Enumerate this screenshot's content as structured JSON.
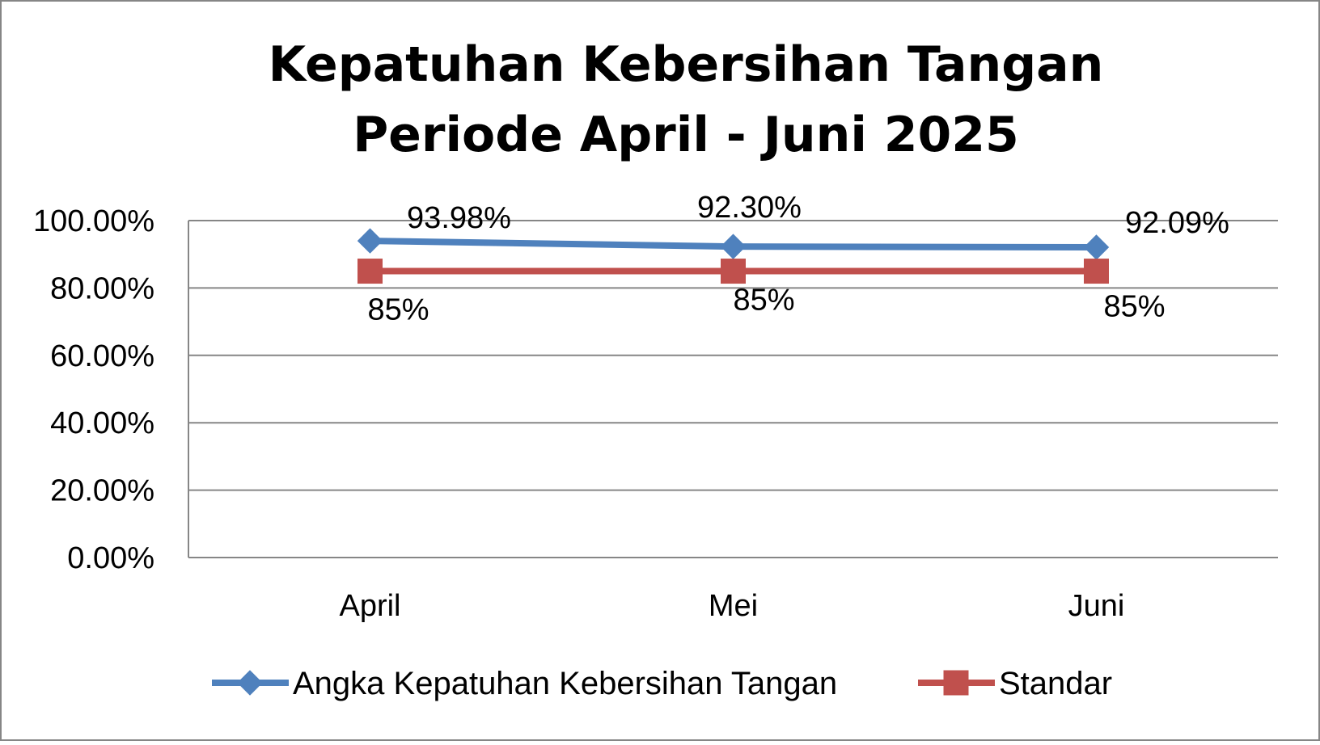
{
  "chart_data": {
    "type": "line",
    "title_lines": [
      "Kepatuhan Kebersihan Tangan",
      "Periode April - Juni 2025"
    ],
    "categories": [
      "April",
      "Mei",
      "Juni"
    ],
    "ylim": [
      0,
      100
    ],
    "yticks": [
      0,
      20,
      40,
      60,
      80,
      100
    ],
    "ytick_labels": [
      "0.00%",
      "20.00%",
      "40.00%",
      "60.00%",
      "80.00%",
      "100.00%"
    ],
    "grid": true,
    "legend_position": "bottom",
    "series": [
      {
        "name": "Angka Kepatuhan Kebersihan Tangan",
        "values": [
          93.98,
          92.3,
          92.09
        ],
        "labels": [
          "93.98%",
          "92.30%",
          "92.09%"
        ],
        "color": "#4f81bd",
        "marker": "diamond"
      },
      {
        "name": "Standar",
        "values": [
          85,
          85,
          85
        ],
        "labels": [
          "85%",
          "85%",
          "85%"
        ],
        "color": "#c0504d",
        "marker": "square"
      }
    ],
    "colors": {
      "grid": "#868686",
      "border": "#868686"
    }
  }
}
